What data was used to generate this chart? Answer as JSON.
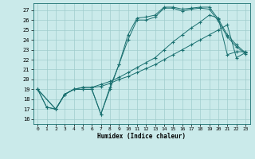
{
  "xlabel": "Humidex (Indice chaleur)",
  "bg_color": "#caeaea",
  "grid_color": "#a0cccc",
  "line_color": "#1a7070",
  "xlim": [
    -0.5,
    23.5
  ],
  "ylim": [
    15.5,
    27.7
  ],
  "xticks": [
    0,
    1,
    2,
    3,
    4,
    5,
    6,
    7,
    8,
    9,
    10,
    11,
    12,
    13,
    14,
    15,
    16,
    17,
    18,
    19,
    20,
    21,
    22,
    23
  ],
  "yticks": [
    16,
    17,
    18,
    19,
    20,
    21,
    22,
    23,
    24,
    25,
    26,
    27
  ],
  "curves": [
    {
      "x": [
        0,
        1,
        2,
        3,
        4,
        5,
        6,
        7,
        8,
        9,
        10,
        11,
        12,
        13,
        14,
        15,
        16,
        17,
        18,
        19,
        20,
        21,
        22,
        23
      ],
      "y": [
        19,
        17.2,
        17,
        18.5,
        19,
        19,
        19,
        16.5,
        19.2,
        21.5,
        24.5,
        26.2,
        26.3,
        26.5,
        27.3,
        27.3,
        27.1,
        27.2,
        27.3,
        27.3,
        26.1,
        24.5,
        23.5,
        22.7
      ]
    },
    {
      "x": [
        0,
        2,
        3,
        4,
        5,
        6,
        7,
        8,
        9,
        10,
        11,
        12,
        13,
        14,
        15,
        16,
        17,
        18,
        19,
        20,
        21,
        22,
        23
      ],
      "y": [
        19,
        17,
        18.5,
        19,
        19.2,
        19.2,
        19.5,
        19.8,
        20.2,
        20.7,
        21.2,
        21.7,
        22.2,
        23.0,
        23.8,
        24.5,
        25.2,
        25.8,
        26.5,
        26.2,
        22.5,
        22.8,
        22.8
      ]
    },
    {
      "x": [
        0,
        2,
        3,
        4,
        5,
        6,
        7,
        8,
        9,
        10,
        11,
        12,
        13,
        14,
        15,
        16,
        17,
        18,
        19,
        20,
        21,
        22,
        23
      ],
      "y": [
        19,
        17,
        18.5,
        19,
        19.2,
        19.2,
        19.3,
        19.6,
        20.0,
        20.3,
        20.7,
        21.1,
        21.5,
        22.0,
        22.5,
        23.0,
        23.5,
        24.0,
        24.5,
        25.0,
        25.5,
        22.2,
        22.7
      ]
    },
    {
      "x": [
        0,
        1,
        2,
        3,
        4,
        5,
        6,
        7,
        8,
        9,
        10,
        11,
        12,
        13,
        14,
        15,
        16,
        17,
        18,
        19,
        20,
        21,
        22,
        23
      ],
      "y": [
        19,
        17.2,
        17,
        18.5,
        19,
        19,
        19,
        16.5,
        19.0,
        21.5,
        24.0,
        26.0,
        26.0,
        26.3,
        27.2,
        27.2,
        26.9,
        27.1,
        27.2,
        27.1,
        25.9,
        24.3,
        23.3,
        22.6
      ]
    }
  ]
}
